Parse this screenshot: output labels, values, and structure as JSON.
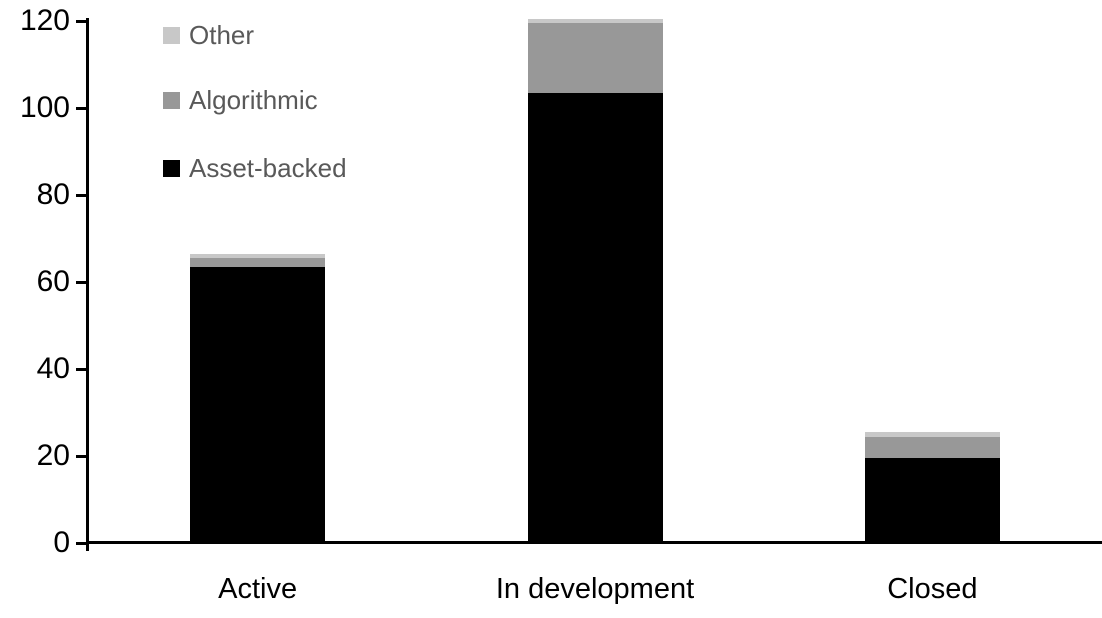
{
  "chart_data": {
    "type": "bar",
    "stacked": true,
    "title": "",
    "xlabel": "",
    "ylabel": "",
    "categories": [
      "Active",
      "In development",
      "Closed"
    ],
    "series": [
      {
        "name": "Asset-backed",
        "color": "#000000",
        "values": [
          63,
          103,
          19
        ]
      },
      {
        "name": "Algorithmic",
        "color": "#989898",
        "values": [
          2,
          16,
          5
        ]
      },
      {
        "name": "Other",
        "color": "#c8c8c8",
        "values": [
          1,
          1,
          1
        ]
      }
    ],
    "totals": [
      66,
      120,
      25
    ],
    "y_axis": {
      "min": 0,
      "max": 120,
      "tick_step": 20,
      "tick_labels": [
        "0",
        "20",
        "40",
        "60",
        "80",
        "100",
        "120"
      ]
    },
    "grid": false,
    "axis_color": "#000000",
    "legend": {
      "position": "top-left",
      "order": [
        "Other",
        "Algorithmic",
        "Asset-backed"
      ],
      "text_color": "#595959"
    }
  }
}
